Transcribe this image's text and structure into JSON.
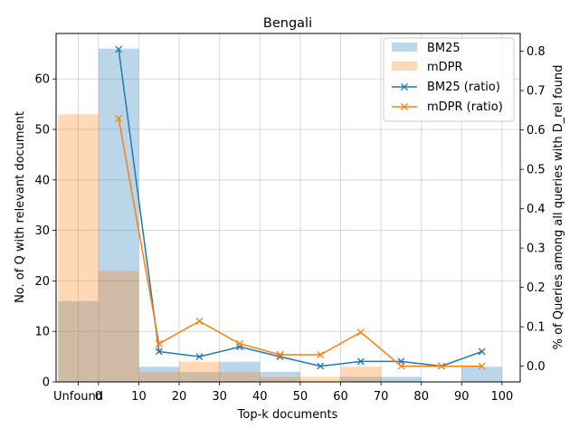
{
  "chart_data": {
    "type": "bar",
    "title": "Bengali",
    "xlabel": "Top-k documents",
    "ylabel_left": "No. of Q with relevant document",
    "ylabel_right": "% of Queries among all queries with D_rel found",
    "x_tick_labels": [
      "Unfound",
      "0",
      "10",
      "20",
      "30",
      "40",
      "50",
      "60",
      "70",
      "80",
      "90",
      "100"
    ],
    "bins": [
      "Unfound",
      "0-10",
      "10-20",
      "20-30",
      "30-40",
      "40-50",
      "50-60",
      "60-70",
      "70-80",
      "80-90",
      "90-100"
    ],
    "ylim_left": [
      0,
      69
    ],
    "y_ticks_left": [
      0,
      10,
      20,
      30,
      40,
      50,
      60
    ],
    "ylim_right": [
      -0.04,
      0.845
    ],
    "y_ticks_right": [
      0.0,
      0.1,
      0.2,
      0.3,
      0.4,
      0.5,
      0.6,
      0.7,
      0.8
    ],
    "grid": true,
    "legend_position": "top-right",
    "bar_series": [
      {
        "name": "BM25",
        "color": "#1f77b4",
        "alpha": 0.3,
        "values": [
          16,
          66,
          3,
          2,
          4,
          2,
          0,
          1,
          1,
          0,
          3
        ]
      },
      {
        "name": "mDPR",
        "color": "#ff7f0e",
        "alpha": 0.3,
        "values": [
          53,
          22,
          2,
          4,
          2,
          1,
          1,
          3,
          0,
          0,
          0
        ]
      }
    ],
    "line_series": [
      {
        "name": "BM25 (ratio)",
        "color": "#1f77b4",
        "marker": "x",
        "x": [
          5,
          15,
          25,
          35,
          45,
          55,
          65,
          75,
          85,
          95
        ],
        "y": [
          0.805,
          0.037,
          0.024,
          0.049,
          0.024,
          0.0,
          0.012,
          0.012,
          0.0,
          0.037
        ]
      },
      {
        "name": "mDPR (ratio)",
        "color": "#ff7f0e",
        "marker": "x",
        "x": [
          5,
          15,
          25,
          35,
          45,
          55,
          65,
          75,
          85,
          95
        ],
        "y": [
          0.629,
          0.057,
          0.114,
          0.057,
          0.029,
          0.029,
          0.086,
          0.0,
          0.0,
          0.0
        ]
      }
    ]
  }
}
